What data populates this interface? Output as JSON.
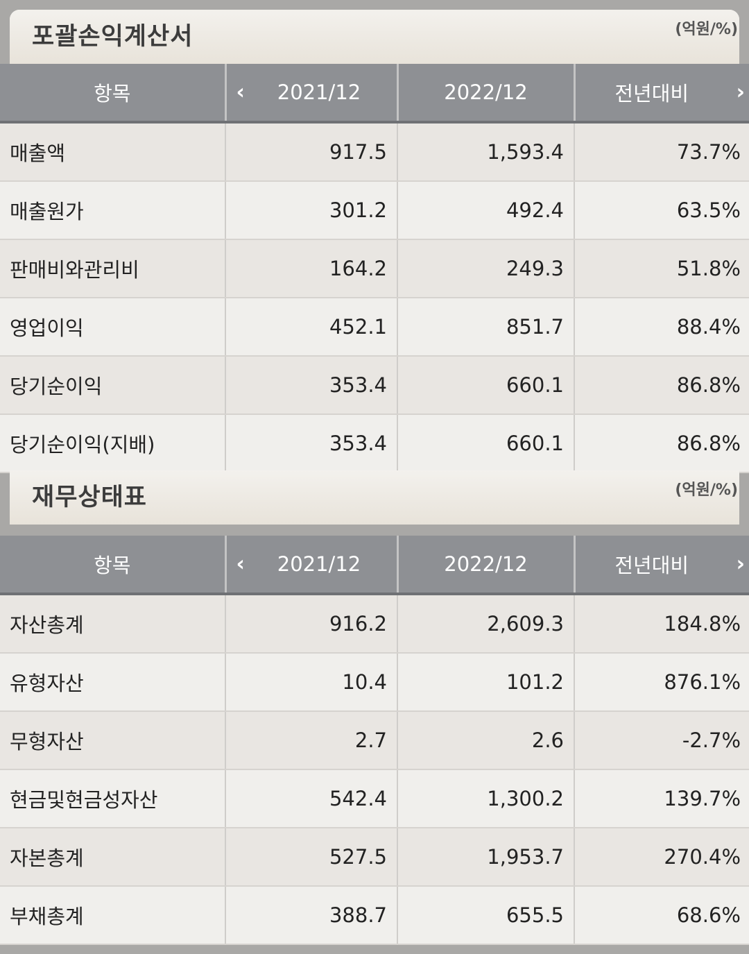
{
  "income_statement": {
    "title": "포괄손익계산서",
    "unit": "(억원/%)",
    "headers": {
      "item": "항목",
      "period1": "2021/12",
      "period2": "2022/12",
      "yoy": "전년대비"
    },
    "rows": [
      {
        "label": "매출액",
        "v1": "917.5",
        "v2": "1,593.4",
        "yoy": "73.7%"
      },
      {
        "label": "매출원가",
        "v1": "301.2",
        "v2": "492.4",
        "yoy": "63.5%"
      },
      {
        "label": "판매비와관리비",
        "v1": "164.2",
        "v2": "249.3",
        "yoy": "51.8%"
      },
      {
        "label": "영업이익",
        "v1": "452.1",
        "v2": "851.7",
        "yoy": "88.4%"
      },
      {
        "label": "당기순이익",
        "v1": "353.4",
        "v2": "660.1",
        "yoy": "86.8%"
      },
      {
        "label": "당기순이익(지배)",
        "v1": "353.4",
        "v2": "660.1",
        "yoy": "86.8%"
      }
    ]
  },
  "balance_sheet": {
    "title": "재무상태표",
    "unit": "(억원/%)",
    "headers": {
      "item": "항목",
      "period1": "2021/12",
      "period2": "2022/12",
      "yoy": "전년대비"
    },
    "rows": [
      {
        "label": "자산총계",
        "v1": "916.2",
        "v2": "2,609.3",
        "yoy": "184.8%"
      },
      {
        "label": "유형자산",
        "v1": "10.4",
        "v2": "101.2",
        "yoy": "876.1%"
      },
      {
        "label": "무형자산",
        "v1": "2.7",
        "v2": "2.6",
        "yoy": "-2.7%"
      },
      {
        "label": "현금및현금성자산",
        "v1": "542.4",
        "v2": "1,300.2",
        "yoy": "139.7%"
      },
      {
        "label": "자본총계",
        "v1": "527.5",
        "v2": "1,953.7",
        "yoy": "270.4%"
      },
      {
        "label": "부채총계",
        "v1": "388.7",
        "v2": "655.5",
        "yoy": "68.6%"
      }
    ]
  },
  "icons": {
    "prev": "chevron-left-icon",
    "next": "chevron-right-icon"
  },
  "colors": {
    "header_bg": "#8e9094",
    "negative": "#d2402f"
  }
}
